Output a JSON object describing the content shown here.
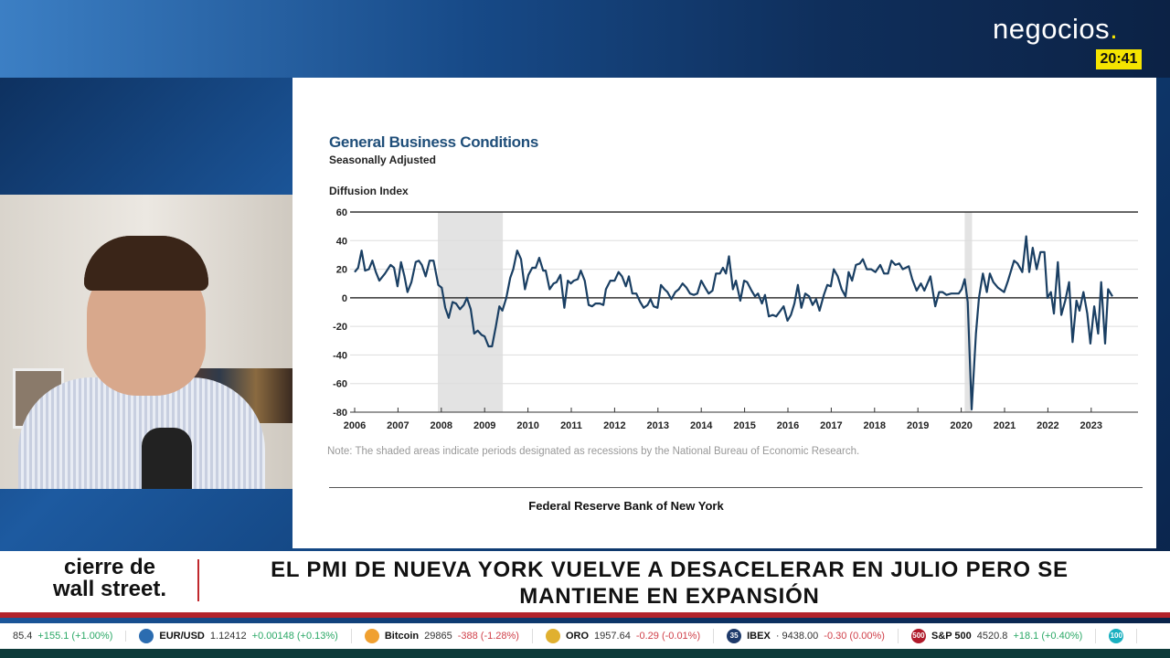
{
  "brand": {
    "logo": "negocios",
    "logo_dot": ".",
    "time": "20:41",
    "colors": {
      "accent": "#f5e400",
      "red": "#b3232b"
    }
  },
  "show": {
    "name_line1": "cierre de",
    "name_line2": "wall street."
  },
  "headline": "EL PMI DE NUEVA YORK VUELVE A DESACELERAR EN JULIO PERO SE MANTIENE EN EXPANSIÓN",
  "ticker": [
    {
      "name": "",
      "price": "85.4",
      "change": "+155.1 (+1.00%)",
      "dir": "up",
      "icon": ""
    },
    {
      "name": "EUR/USD",
      "price": "1.12412",
      "change": "+0.00148 (+0.13%)",
      "dir": "up",
      "icon": "euro-flag-icon"
    },
    {
      "name": "Bitcoin",
      "price": "29865",
      "change": "-388 (-1.28%)",
      "dir": "dn",
      "icon": "bitcoin-icon"
    },
    {
      "name": "ORO",
      "price": "1957.64",
      "change": "-0.29 (-0.01%)",
      "dir": "dn",
      "icon": "gold-icon"
    },
    {
      "name": "IBEX",
      "price": "· 9438.00",
      "change": "-0.30 (0.00%)",
      "dir": "dn",
      "icon": "ibex-35-icon",
      "icon_text": "35"
    },
    {
      "name": "S&P 500",
      "price": "4520.8",
      "change": "+18.1 (+0.40%)",
      "dir": "up",
      "icon": "sp500-icon",
      "icon_text": "500"
    },
    {
      "name": "",
      "price": "",
      "change": "",
      "dir": "up",
      "icon": "nasdaq-100-icon",
      "icon_text": "100"
    }
  ],
  "chart_data": {
    "type": "line",
    "title": "General Business Conditions",
    "subtitle": "Seasonally Adjusted",
    "ylabel": "Diffusion Index",
    "xlabel": "",
    "ylim": [
      -80,
      60
    ],
    "yticks": [
      60,
      40,
      20,
      0,
      -20,
      -40,
      -60,
      -80
    ],
    "xlim": [
      2006,
      2023.7
    ],
    "xticks": [
      2006,
      2007,
      2008,
      2009,
      2010,
      2011,
      2012,
      2013,
      2014,
      2015,
      2016,
      2017,
      2018,
      2019,
      2020,
      2021,
      2022,
      2023
    ],
    "grid": true,
    "line_color": "#1a3f63",
    "recessions": [
      [
        2007.92,
        2009.42
      ],
      [
        2020.08,
        2020.25
      ]
    ],
    "note": "Note: The shaded areas indicate periods designated as recessions by the National Bureau of Economic Research.",
    "source": "Federal Reserve Bank of New York",
    "series": [
      {
        "points": [
          [
            2006.0,
            18
          ],
          [
            2006.08,
            21
          ],
          [
            2006.16,
            33
          ],
          [
            2006.24,
            19
          ],
          [
            2006.33,
            20
          ],
          [
            2006.41,
            26
          ],
          [
            2006.49,
            18
          ],
          [
            2006.57,
            12
          ],
          [
            2006.7,
            17
          ],
          [
            2006.83,
            23
          ],
          [
            2006.91,
            21
          ],
          [
            2006.99,
            8
          ],
          [
            2007.07,
            25
          ],
          [
            2007.15,
            15
          ],
          [
            2007.22,
            4
          ],
          [
            2007.31,
            11
          ],
          [
            2007.41,
            25
          ],
          [
            2007.48,
            26
          ],
          [
            2007.55,
            23
          ],
          [
            2007.64,
            15
          ],
          [
            2007.73,
            26
          ],
          [
            2007.82,
            26
          ],
          [
            2007.93,
            9
          ],
          [
            2008.01,
            7
          ],
          [
            2008.09,
            -7
          ],
          [
            2008.17,
            -14
          ],
          [
            2008.26,
            -3
          ],
          [
            2008.34,
            -4
          ],
          [
            2008.43,
            -8
          ],
          [
            2008.52,
            -5
          ],
          [
            2008.59,
            0
          ],
          [
            2008.68,
            -8
          ],
          [
            2008.76,
            -25
          ],
          [
            2008.84,
            -23
          ],
          [
            2008.93,
            -26
          ],
          [
            2009.0,
            -27
          ],
          [
            2009.09,
            -34
          ],
          [
            2009.17,
            -34
          ],
          [
            2009.26,
            -20
          ],
          [
            2009.34,
            -6
          ],
          [
            2009.41,
            -9
          ],
          [
            2009.5,
            0
          ],
          [
            2009.59,
            14
          ],
          [
            2009.66,
            20
          ],
          [
            2009.75,
            33
          ],
          [
            2009.84,
            27
          ],
          [
            2009.93,
            6
          ],
          [
            2010.01,
            16
          ],
          [
            2010.1,
            21
          ],
          [
            2010.18,
            21
          ],
          [
            2010.26,
            28
          ],
          [
            2010.35,
            19
          ],
          [
            2010.41,
            19
          ],
          [
            2010.5,
            6
          ],
          [
            2010.59,
            10
          ],
          [
            2010.66,
            11
          ],
          [
            2010.75,
            16
          ],
          [
            2010.84,
            -7
          ],
          [
            2010.92,
            12
          ],
          [
            2010.99,
            10
          ],
          [
            2011.06,
            12
          ],
          [
            2011.15,
            13
          ],
          [
            2011.22,
            19
          ],
          [
            2011.31,
            12
          ],
          [
            2011.4,
            -5
          ],
          [
            2011.48,
            -6
          ],
          [
            2011.56,
            -4
          ],
          [
            2011.66,
            -4
          ],
          [
            2011.74,
            -5
          ],
          [
            2011.8,
            6
          ],
          [
            2011.9,
            12
          ],
          [
            2012.0,
            12
          ],
          [
            2012.09,
            18
          ],
          [
            2012.17,
            15
          ],
          [
            2012.26,
            8
          ],
          [
            2012.33,
            15
          ],
          [
            2012.41,
            3
          ],
          [
            2012.5,
            3
          ],
          [
            2012.59,
            -3
          ],
          [
            2012.67,
            -7
          ],
          [
            2012.76,
            -5
          ],
          [
            2012.83,
            -1
          ],
          [
            2012.9,
            -6
          ],
          [
            2012.99,
            -7
          ],
          [
            2013.07,
            9
          ],
          [
            2013.15,
            6
          ],
          [
            2013.22,
            4
          ],
          [
            2013.31,
            -1
          ],
          [
            2013.4,
            4
          ],
          [
            2013.48,
            6
          ],
          [
            2013.57,
            10
          ],
          [
            2013.66,
            7
          ],
          [
            2013.74,
            3
          ],
          [
            2013.83,
            2
          ],
          [
            2013.91,
            3
          ],
          [
            2014.0,
            12
          ],
          [
            2014.09,
            7
          ],
          [
            2014.17,
            3
          ],
          [
            2014.26,
            5
          ],
          [
            2014.34,
            17
          ],
          [
            2014.43,
            17
          ],
          [
            2014.5,
            21
          ],
          [
            2014.57,
            17
          ],
          [
            2014.64,
            29
          ],
          [
            2014.73,
            6
          ],
          [
            2014.8,
            12
          ],
          [
            2014.9,
            -2
          ],
          [
            2014.99,
            12
          ],
          [
            2015.06,
            11
          ],
          [
            2015.16,
            5
          ],
          [
            2015.24,
            1
          ],
          [
            2015.31,
            3
          ],
          [
            2015.4,
            -4
          ],
          [
            2015.47,
            2
          ],
          [
            2015.56,
            -13
          ],
          [
            2015.65,
            -12
          ],
          [
            2015.73,
            -13
          ],
          [
            2015.83,
            -9
          ],
          [
            2015.9,
            -6
          ],
          [
            2015.99,
            -16
          ],
          [
            2016.07,
            -12
          ],
          [
            2016.15,
            -4
          ],
          [
            2016.23,
            9
          ],
          [
            2016.31,
            -7
          ],
          [
            2016.4,
            3
          ],
          [
            2016.49,
            1
          ],
          [
            2016.57,
            -5
          ],
          [
            2016.65,
            -1
          ],
          [
            2016.73,
            -9
          ],
          [
            2016.83,
            2
          ],
          [
            2016.91,
            9
          ],
          [
            2016.99,
            8
          ],
          [
            2017.06,
            20
          ],
          [
            2017.15,
            15
          ],
          [
            2017.24,
            6
          ],
          [
            2017.33,
            1
          ],
          [
            2017.4,
            18
          ],
          [
            2017.48,
            12
          ],
          [
            2017.57,
            23
          ],
          [
            2017.66,
            24
          ],
          [
            2017.73,
            27
          ],
          [
            2017.82,
            20
          ],
          [
            2017.92,
            20
          ],
          [
            2018.02,
            18
          ],
          [
            2018.13,
            23
          ],
          [
            2018.22,
            17
          ],
          [
            2018.31,
            17
          ],
          [
            2018.39,
            26
          ],
          [
            2018.48,
            23
          ],
          [
            2018.57,
            24
          ],
          [
            2018.65,
            20
          ],
          [
            2018.79,
            22
          ],
          [
            2018.87,
            13
          ],
          [
            2018.97,
            5
          ],
          [
            2019.07,
            10
          ],
          [
            2019.15,
            5
          ],
          [
            2019.29,
            15
          ],
          [
            2019.4,
            -6
          ],
          [
            2019.49,
            4
          ],
          [
            2019.57,
            4
          ],
          [
            2019.66,
            2
          ],
          [
            2019.77,
            3
          ],
          [
            2019.94,
            3
          ],
          [
            2020.01,
            6
          ],
          [
            2020.08,
            13
          ],
          [
            2020.15,
            -3
          ],
          [
            2020.24,
            -78
          ],
          [
            2020.34,
            -25
          ],
          [
            2020.41,
            0
          ],
          [
            2020.5,
            17
          ],
          [
            2020.59,
            4
          ],
          [
            2020.66,
            17
          ],
          [
            2020.74,
            11
          ],
          [
            2020.85,
            7
          ],
          [
            2020.99,
            4
          ],
          [
            2021.08,
            12
          ],
          [
            2021.22,
            26
          ],
          [
            2021.3,
            24
          ],
          [
            2021.41,
            18
          ],
          [
            2021.5,
            43
          ],
          [
            2021.57,
            18
          ],
          [
            2021.65,
            35
          ],
          [
            2021.74,
            20
          ],
          [
            2021.83,
            32
          ],
          [
            2021.92,
            32
          ],
          [
            2021.99,
            0
          ],
          [
            2022.07,
            4
          ],
          [
            2022.14,
            -11
          ],
          [
            2022.23,
            25
          ],
          [
            2022.31,
            -12
          ],
          [
            2022.4,
            -2
          ],
          [
            2022.49,
            11
          ],
          [
            2022.57,
            -31
          ],
          [
            2022.66,
            -2
          ],
          [
            2022.73,
            -9
          ],
          [
            2022.82,
            4
          ],
          [
            2022.91,
            -11
          ],
          [
            2022.98,
            -32
          ],
          [
            2023.07,
            -6
          ],
          [
            2023.16,
            -25
          ],
          [
            2023.23,
            11
          ],
          [
            2023.32,
            -32
          ],
          [
            2023.39,
            6
          ],
          [
            2023.49,
            1
          ]
        ]
      }
    ]
  }
}
